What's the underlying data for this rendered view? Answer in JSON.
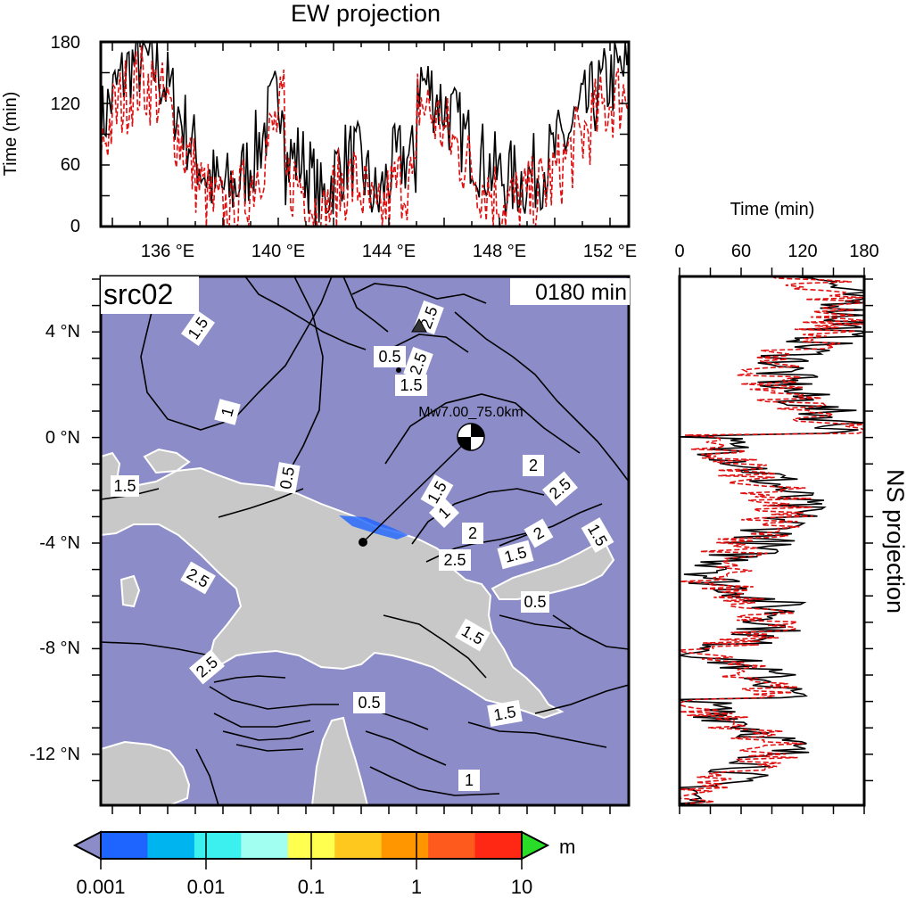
{
  "ew_panel": {
    "title": "EW projection",
    "ylabel": "Time (min)",
    "yticks": [
      "0",
      "60",
      "120",
      "180"
    ],
    "xticks": [
      "136 °E",
      "140 °E",
      "144 °E",
      "148 °E",
      "152 °E"
    ]
  },
  "ns_panel": {
    "title": "NS projection",
    "xlabel": "Time (min)",
    "xticks": [
      "0",
      "60",
      "120",
      "180"
    ]
  },
  "map": {
    "source_label": "src02",
    "time_label": "0180 min",
    "event_label": "Mw7.00_75.0km",
    "yticks": [
      "4 °N",
      "0 °N",
      "-4 °N",
      "-8 °N",
      "-12 °N"
    ],
    "contour_labels": [
      "1.5",
      "2.5",
      "0.5",
      "2.5",
      "1.5",
      "1",
      "0.5",
      "1.5",
      "2",
      "2.5",
      "1",
      "2",
      "2",
      "1.5",
      "2.5",
      "1.5",
      "0.5",
      "1.5",
      "2.5",
      "0.5",
      "1.5",
      "1",
      "1.5",
      "2.5"
    ]
  },
  "colorbar": {
    "unit": "m",
    "ticks": [
      "0.001",
      "0.01",
      "0.1",
      "1",
      "10"
    ],
    "colors": [
      "#1e64ff",
      "#00b4f0",
      "#3cf0f0",
      "#a0fff0",
      "#ffff50",
      "#ffc81e",
      "#ff9600",
      "#ff5a1e",
      "#ff2814"
    ],
    "under_color": "#8c8cc8",
    "over_color": "#28dc28"
  },
  "colors": {
    "ocean": "#8c8cc8",
    "land": "#c8c8c8",
    "max_series": "#000000",
    "mean_series": "#e01010"
  }
}
